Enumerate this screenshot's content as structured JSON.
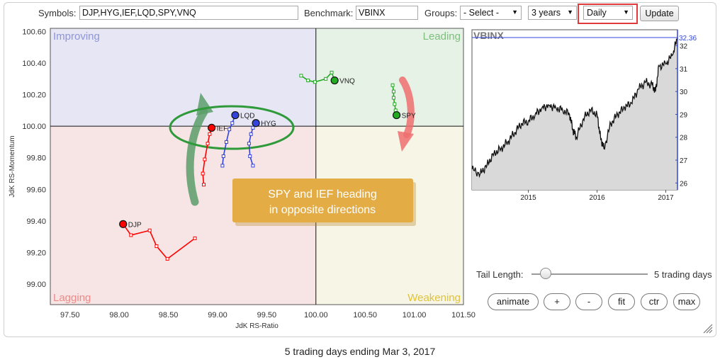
{
  "toolbar": {
    "symbols_label": "Symbols:",
    "symbols_value": "DJP,HYG,IEF,LQD,SPY,VNQ",
    "benchmark_label": "Benchmark:",
    "benchmark_value": "VBINX",
    "groups_label": "Groups:",
    "groups_value": "- Select -",
    "period_value": "3 years",
    "frequency_value": "Daily",
    "update_label": "Update",
    "highlight_color": "#e03a3a"
  },
  "rrg": {
    "quadrants": {
      "improving": "Improving",
      "leading": "Leading",
      "lagging": "Lagging",
      "weakening": "Weakening"
    },
    "quadrant_colors": {
      "improving": "#e6e6f5",
      "leading": "#e6f2e6",
      "lagging": "#f7e4e4",
      "weakening": "#f7f5e6"
    },
    "annotation": "SPY and IEF heading in opposite directions"
  },
  "controls": {
    "tail_label": "Tail Length:",
    "tail_value_text": "5 trading days",
    "tail_position": 0.12,
    "buttons": [
      "animate",
      "+",
      "-",
      "fit",
      "ctr",
      "max"
    ]
  },
  "footer": "5 trading days ending Mar 3, 2017",
  "chart_data": [
    {
      "type": "scatter",
      "subtype": "relative-rotation-graph",
      "xlabel": "JdK RS-Ratio",
      "ylabel": "JdK RS-Momentum",
      "xlim": [
        97.3,
        101.5
      ],
      "ylim": [
        98.87,
        100.62
      ],
      "xticks": [
        "97.50",
        "98.00",
        "98.50",
        "99.00",
        "99.50",
        "100.00",
        "100.50",
        "101.00",
        "101.50"
      ],
      "yticks": [
        "99.00",
        "99.20",
        "99.40",
        "99.60",
        "99.80",
        "100.00",
        "100.20",
        "100.40",
        "100.60"
      ],
      "grid": false,
      "center": [
        100,
        100
      ],
      "series": [
        {
          "name": "DJP",
          "color": "#ff0000",
          "tail": [
            [
              98.77,
              99.29
            ],
            [
              98.49,
              99.16
            ],
            [
              98.38,
              99.24
            ],
            [
              98.31,
              99.34
            ],
            [
              98.12,
              99.31
            ],
            [
              98.04,
              99.38
            ]
          ]
        },
        {
          "name": "HYG",
          "color": "#3344dd",
          "tail": [
            [
              99.36,
              99.75
            ],
            [
              99.33,
              99.81
            ],
            [
              99.32,
              99.89
            ],
            [
              99.34,
              99.95
            ],
            [
              99.36,
              99.99
            ],
            [
              99.39,
              100.02
            ]
          ]
        },
        {
          "name": "IEF",
          "color": "#ff0000",
          "tail": [
            [
              98.86,
              99.63
            ],
            [
              98.85,
              99.7
            ],
            [
              98.87,
              99.79
            ],
            [
              98.9,
              99.89
            ],
            [
              98.92,
              99.95
            ],
            [
              98.94,
              99.99
            ]
          ]
        },
        {
          "name": "LQD",
          "color": "#3344dd",
          "tail": [
            [
              99.05,
              99.75
            ],
            [
              99.06,
              99.81
            ],
            [
              99.09,
              99.9
            ],
            [
              99.12,
              99.98
            ],
            [
              99.15,
              100.02
            ],
            [
              99.18,
              100.07
            ]
          ]
        },
        {
          "name": "SPY",
          "color": "#22aa22",
          "tail": [
            [
              100.78,
              100.26
            ],
            [
              100.79,
              100.22
            ],
            [
              100.79,
              100.18
            ],
            [
              100.8,
              100.14
            ],
            [
              100.81,
              100.1
            ],
            [
              100.82,
              100.07
            ]
          ]
        },
        {
          "name": "VNQ",
          "color": "#22aa22",
          "tail": [
            [
              99.85,
              100.32
            ],
            [
              99.92,
              100.29
            ],
            [
              99.99,
              100.28
            ],
            [
              100.1,
              100.3
            ],
            [
              100.16,
              100.34
            ],
            [
              100.19,
              100.29
            ]
          ]
        }
      ]
    },
    {
      "type": "line",
      "title": "VBINX",
      "last_value": "32.36",
      "x_tick_labels": [
        "2015",
        "2016",
        "2017"
      ],
      "y_tick_labels": [
        "26",
        "27",
        "28",
        "29",
        "30",
        "31",
        "32"
      ],
      "ylim": [
        25.7,
        32.7
      ],
      "xlim": [
        2014.18,
        2017.17
      ],
      "x": [
        2014.18,
        2014.3,
        2014.4,
        2014.5,
        2014.6,
        2014.7,
        2014.8,
        2014.9,
        2015.0,
        2015.1,
        2015.2,
        2015.3,
        2015.4,
        2015.5,
        2015.6,
        2015.65,
        2015.7,
        2015.8,
        2015.9,
        2016.0,
        2016.05,
        2016.1,
        2016.2,
        2016.3,
        2016.4,
        2016.5,
        2016.6,
        2016.7,
        2016.8,
        2016.85,
        2016.9,
        2017.0,
        2017.1,
        2017.17
      ],
      "values": [
        26.6,
        26.4,
        26.8,
        27.3,
        27.5,
        27.8,
        28.2,
        28.6,
        28.7,
        29.0,
        29.3,
        29.4,
        29.3,
        29.2,
        29.0,
        28.3,
        28.0,
        28.8,
        29.2,
        29.0,
        28.0,
        27.5,
        28.6,
        29.0,
        29.3,
        29.5,
        30.1,
        30.4,
        30.3,
        30.0,
        31.1,
        31.2,
        31.6,
        32.36
      ]
    }
  ]
}
